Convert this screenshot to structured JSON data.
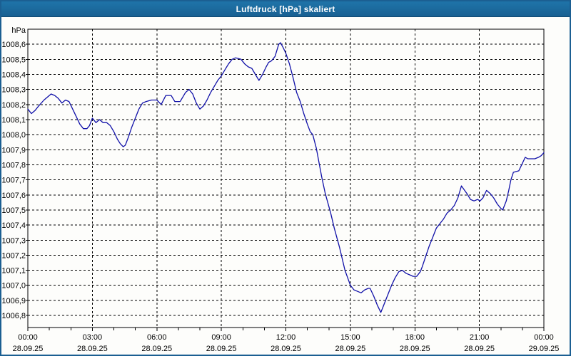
{
  "window": {
    "title": "Luftdruck [hPa] skaliert"
  },
  "colors": {
    "title_bar": "#1a699e",
    "window_border": "#1b5f92",
    "plot_background": "#fdfdfb",
    "grid": "#000000",
    "series_line": "#1010a8",
    "text": "#000000"
  },
  "chart_data": {
    "type": "line",
    "title": "Luftdruck [hPa] skaliert",
    "y_unit_label": "hPa",
    "decimal_separator": ",",
    "ylim": [
      1006.72,
      1008.7
    ],
    "ytick_start": 1006.8,
    "ytick_end": 1008.6,
    "ytick_step": 0.1,
    "xlim_minutes": [
      0,
      1440
    ],
    "minor_tick_every_minutes": 60,
    "grid_style": "dashed",
    "legend": "none",
    "xticks": [
      {
        "minute": 0,
        "time": "00:00",
        "date": "28.09.25"
      },
      {
        "minute": 180,
        "time": "03:00",
        "date": "28.09.25"
      },
      {
        "minute": 360,
        "time": "06:00",
        "date": "28.09.25"
      },
      {
        "minute": 540,
        "time": "09:00",
        "date": "28.09.25"
      },
      {
        "minute": 720,
        "time": "12:00",
        "date": "28.09.25"
      },
      {
        "minute": 900,
        "time": "15:00",
        "date": "28.09.25"
      },
      {
        "minute": 1080,
        "time": "18:00",
        "date": "28.09.25"
      },
      {
        "minute": 1260,
        "time": "21:00",
        "date": "28.09.25"
      },
      {
        "minute": 1440,
        "time": "00:00",
        "date": "29.09.25"
      }
    ],
    "series": [
      {
        "name": "Luftdruck",
        "color": "#1010a8",
        "points": [
          [
            0,
            1008.17
          ],
          [
            10,
            1008.14
          ],
          [
            20,
            1008.16
          ],
          [
            30,
            1008.19
          ],
          [
            45,
            1008.23
          ],
          [
            55,
            1008.25
          ],
          [
            65,
            1008.27
          ],
          [
            75,
            1008.26
          ],
          [
            85,
            1008.24
          ],
          [
            95,
            1008.21
          ],
          [
            105,
            1008.23
          ],
          [
            115,
            1008.22
          ],
          [
            125,
            1008.17
          ],
          [
            135,
            1008.12
          ],
          [
            145,
            1008.07
          ],
          [
            155,
            1008.04
          ],
          [
            165,
            1008.04
          ],
          [
            172,
            1008.06
          ],
          [
            180,
            1008.11
          ],
          [
            190,
            1008.08
          ],
          [
            200,
            1008.1
          ],
          [
            210,
            1008.08
          ],
          [
            220,
            1008.08
          ],
          [
            230,
            1008.06
          ],
          [
            240,
            1008.02
          ],
          [
            250,
            1007.97
          ],
          [
            258,
            1007.94
          ],
          [
            266,
            1007.92
          ],
          [
            272,
            1007.93
          ],
          [
            280,
            1007.98
          ],
          [
            290,
            1008.05
          ],
          [
            300,
            1008.11
          ],
          [
            310,
            1008.17
          ],
          [
            320,
            1008.21
          ],
          [
            330,
            1008.22
          ],
          [
            345,
            1008.23
          ],
          [
            360,
            1008.23
          ],
          [
            372,
            1008.2
          ],
          [
            385,
            1008.26
          ],
          [
            400,
            1008.26
          ],
          [
            410,
            1008.22
          ],
          [
            425,
            1008.22
          ],
          [
            440,
            1008.28
          ],
          [
            450,
            1008.3
          ],
          [
            460,
            1008.27
          ],
          [
            470,
            1008.21
          ],
          [
            480,
            1008.17
          ],
          [
            490,
            1008.19
          ],
          [
            500,
            1008.23
          ],
          [
            510,
            1008.28
          ],
          [
            520,
            1008.32
          ],
          [
            530,
            1008.36
          ],
          [
            540,
            1008.39
          ],
          [
            550,
            1008.43
          ],
          [
            560,
            1008.47
          ],
          [
            570,
            1008.5
          ],
          [
            580,
            1008.51
          ],
          [
            595,
            1008.5
          ],
          [
            605,
            1008.47
          ],
          [
            615,
            1008.45
          ],
          [
            625,
            1008.44
          ],
          [
            635,
            1008.4
          ],
          [
            645,
            1008.36
          ],
          [
            655,
            1008.4
          ],
          [
            665,
            1008.45
          ],
          [
            672,
            1008.48
          ],
          [
            680,
            1008.49
          ],
          [
            690,
            1008.52
          ],
          [
            700,
            1008.6
          ],
          [
            705,
            1008.61
          ],
          [
            712,
            1008.58
          ],
          [
            720,
            1008.54
          ],
          [
            730,
            1008.47
          ],
          [
            740,
            1008.38
          ],
          [
            750,
            1008.28
          ],
          [
            760,
            1008.22
          ],
          [
            770,
            1008.14
          ],
          [
            780,
            1008.07
          ],
          [
            788,
            1008.02
          ],
          [
            795,
            1008.0
          ],
          [
            805,
            1007.91
          ],
          [
            820,
            1007.72
          ],
          [
            830,
            1007.61
          ],
          [
            845,
            1007.48
          ],
          [
            855,
            1007.38
          ],
          [
            870,
            1007.25
          ],
          [
            885,
            1007.1
          ],
          [
            900,
            1007.0
          ],
          [
            910,
            1006.97
          ],
          [
            920,
            1006.96
          ],
          [
            930,
            1006.95
          ],
          [
            940,
            1006.97
          ],
          [
            950,
            1006.98
          ],
          [
            955,
            1006.98
          ],
          [
            965,
            1006.93
          ],
          [
            975,
            1006.87
          ],
          [
            985,
            1006.82
          ],
          [
            995,
            1006.88
          ],
          [
            1005,
            1006.94
          ],
          [
            1015,
            1007.0
          ],
          [
            1025,
            1007.05
          ],
          [
            1035,
            1007.09
          ],
          [
            1045,
            1007.1
          ],
          [
            1055,
            1007.08
          ],
          [
            1065,
            1007.07
          ],
          [
            1075,
            1007.06
          ],
          [
            1085,
            1007.06
          ],
          [
            1095,
            1007.09
          ],
          [
            1100,
            1007.12
          ],
          [
            1110,
            1007.19
          ],
          [
            1120,
            1007.26
          ],
          [
            1130,
            1007.32
          ],
          [
            1140,
            1007.38
          ],
          [
            1150,
            1007.41
          ],
          [
            1160,
            1007.44
          ],
          [
            1170,
            1007.48
          ],
          [
            1180,
            1007.5
          ],
          [
            1190,
            1007.53
          ],
          [
            1200,
            1007.58
          ],
          [
            1205,
            1007.62
          ],
          [
            1210,
            1007.66
          ],
          [
            1225,
            1007.61
          ],
          [
            1235,
            1007.57
          ],
          [
            1245,
            1007.56
          ],
          [
            1255,
            1007.57
          ],
          [
            1262,
            1007.56
          ],
          [
            1270,
            1007.58
          ],
          [
            1280,
            1007.63
          ],
          [
            1290,
            1007.61
          ],
          [
            1300,
            1007.58
          ],
          [
            1310,
            1007.54
          ],
          [
            1320,
            1007.51
          ],
          [
            1325,
            1007.5
          ],
          [
            1335,
            1007.56
          ],
          [
            1342,
            1007.63
          ],
          [
            1348,
            1007.7
          ],
          [
            1355,
            1007.75
          ],
          [
            1370,
            1007.76
          ],
          [
            1380,
            1007.81
          ],
          [
            1388,
            1007.85
          ],
          [
            1395,
            1007.84
          ],
          [
            1405,
            1007.84
          ],
          [
            1415,
            1007.84
          ],
          [
            1425,
            1007.85
          ],
          [
            1432,
            1007.86
          ],
          [
            1440,
            1007.88
          ]
        ]
      }
    ]
  }
}
